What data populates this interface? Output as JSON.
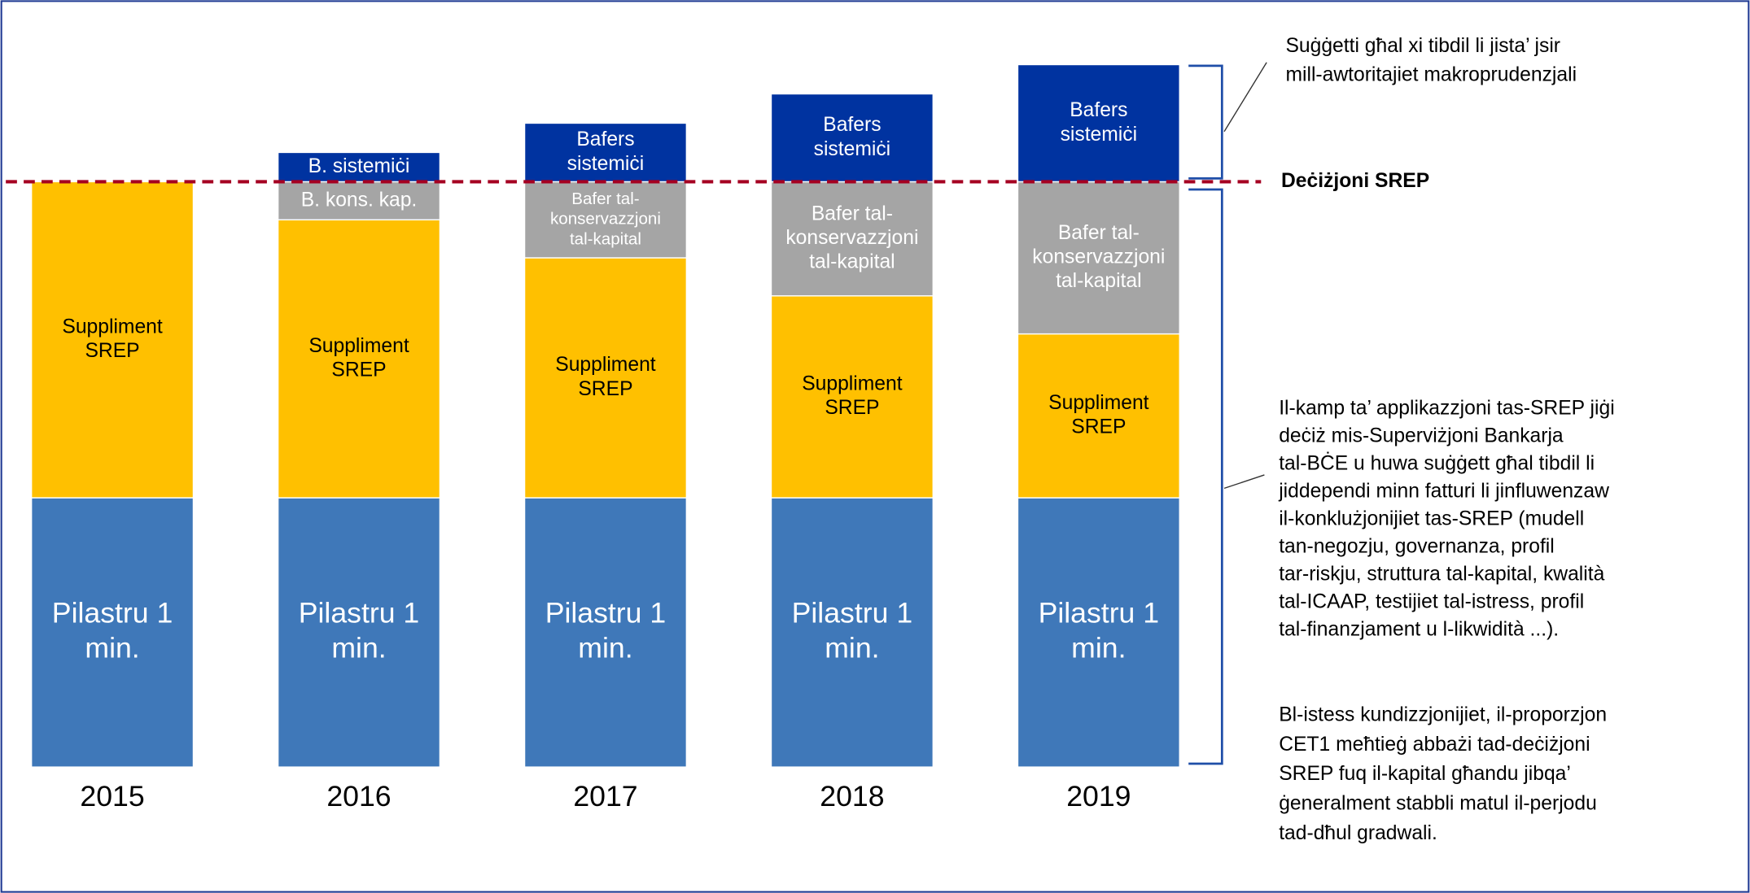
{
  "chart_data": {
    "type": "bar",
    "stacked": true,
    "categories": [
      "2015",
      "2016",
      "2017",
      "2018",
      "2019"
    ],
    "ylim": [
      0,
      125
    ],
    "series": [
      {
        "color": "#3f78b9",
        "text_color": "#ffffff",
        "values": [
          46,
          46,
          46,
          46,
          46
        ],
        "labels": [
          [
            "Pilastru 1",
            "min."
          ],
          [
            "Pilastru 1",
            "min."
          ],
          [
            "Pilastru 1",
            "min."
          ],
          [
            "Pilastru 1",
            "min."
          ],
          [
            "Pilastru 1",
            "min."
          ]
        ]
      },
      {
        "color": "#ffc000",
        "text_color": "#000000",
        "values": [
          54,
          47.5,
          41,
          34.5,
          28
        ],
        "labels": [
          [
            "Suppliment",
            "SREP"
          ],
          [
            "Suppliment",
            "SREP"
          ],
          [
            "Suppliment",
            "SREP"
          ],
          [
            "Suppliment",
            "SREP"
          ],
          [
            "Suppliment",
            "SREP"
          ]
        ]
      },
      {
        "color": "#a5a5a5",
        "text_color": "#ffffff",
        "values": [
          null,
          6.5,
          13,
          19.5,
          26
        ],
        "labels": [
          null,
          [
            "B. kons. kap."
          ],
          [
            "Bafer tal-",
            "konservazzjoni",
            "tal-kapital"
          ],
          [
            "Bafer tal-",
            "konservazzjoni",
            "tal-kapital"
          ],
          [
            "Bafer tal-",
            "konservazzjoni",
            "tal-kapital"
          ]
        ]
      },
      {
        "color": "#0033a0",
        "text_color": "#ffffff",
        "values": [
          null,
          5,
          10,
          15,
          20
        ],
        "labels": [
          null,
          [
            "B. sistemiċi"
          ],
          [
            "Bafers",
            "sistemiċi"
          ],
          [
            "Bafers",
            "sistemiċi"
          ],
          [
            "Bafers",
            "sistemiċi"
          ]
        ]
      }
    ],
    "srep_line": {
      "value": 100,
      "label": "Deċiżjoni SREP",
      "color": "#a50021"
    },
    "annotations": [
      [
        "Suġġetti għal xi tibdil li jista’ jsir",
        "mill-awtoritajiet makroprudenzjali"
      ],
      [
        "Il-kamp ta’ applikazzjoni tas-SREP jiġi",
        "deċiż mis-Superviżjoni Bankarja",
        "tal-BĊE u huwa suġġett għal tibdil li",
        "jiddependi minn fatturi li jinfluwenzaw",
        "il-konklużjonijiet tas-SREP (mudell",
        "tan-negozju, governanza, profil",
        "tar-riskju, struttura tal-kapital, kwalità",
        "tal-ICAAP, testijiet tal-istress, profil",
        "tal-finanzjament u l-likwidità ...)."
      ],
      [
        "Bl-istess kundizzjonijiet, il-proporzjon",
        "CET1 meħtieġ abbażi tad-deċiżjoni",
        "SREP fuq il-kapital għandu jibqa’",
        "ġeneralment stabbli matul il-perjodu",
        "tad-dħul gradwali."
      ]
    ]
  }
}
